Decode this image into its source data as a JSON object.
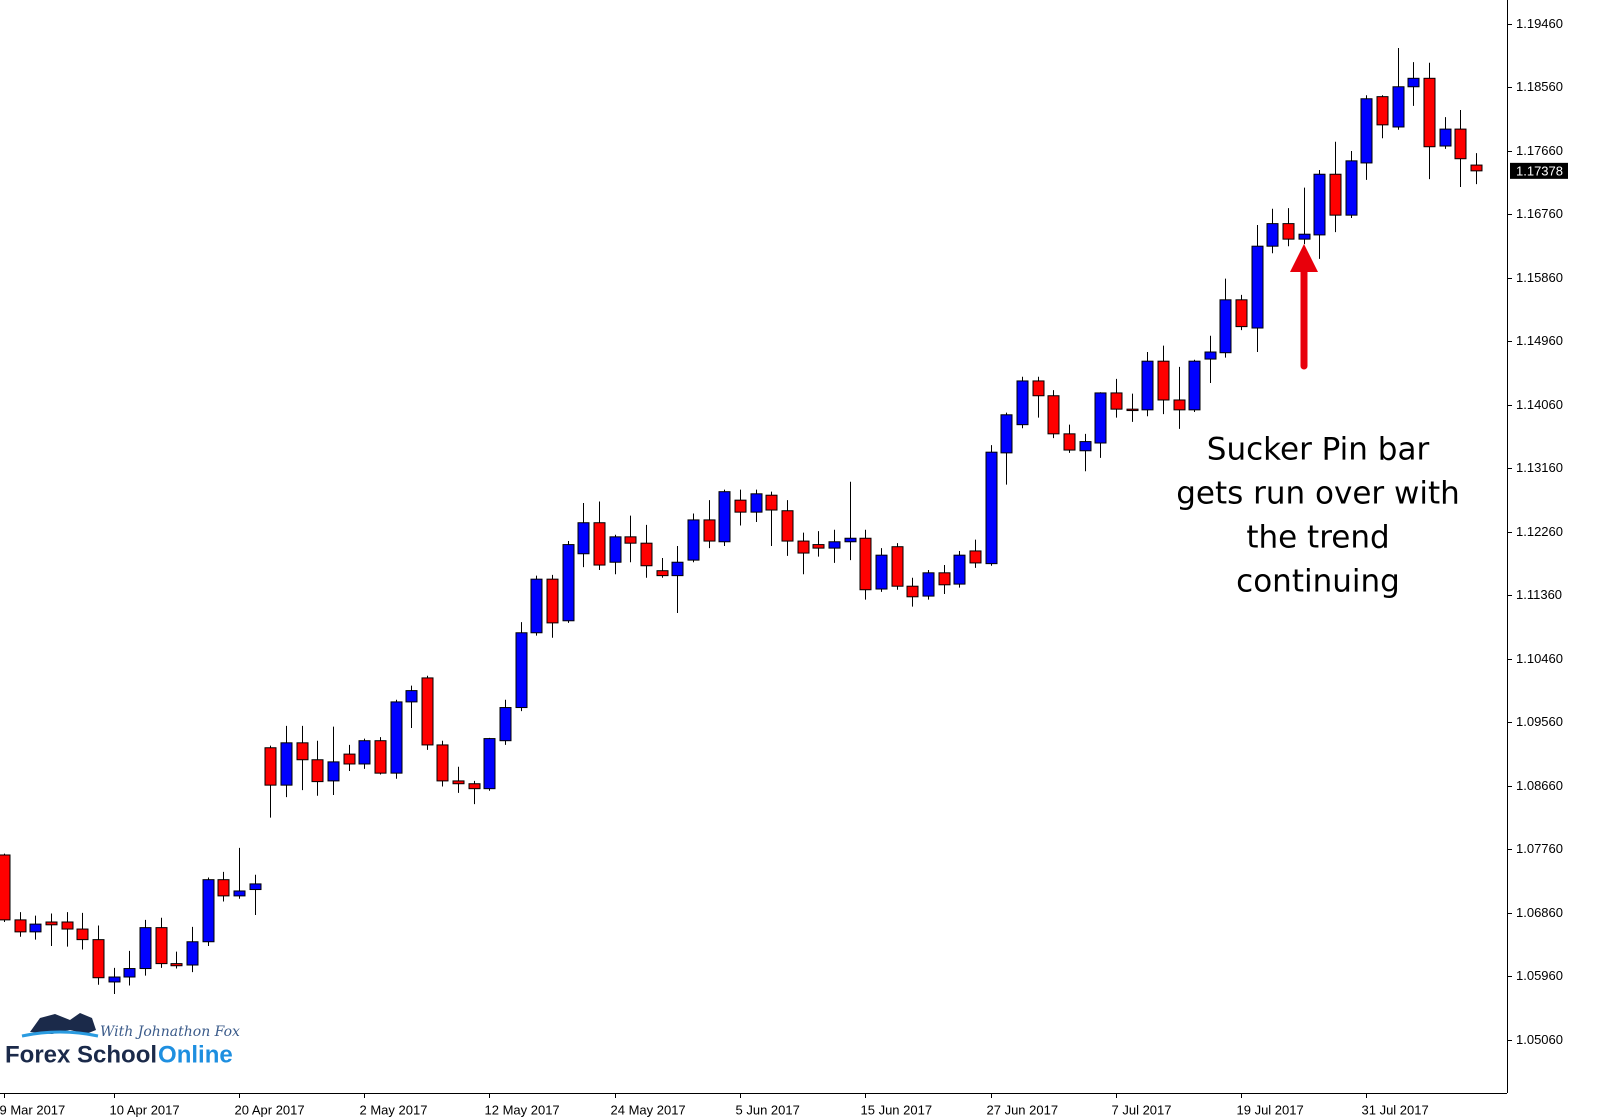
{
  "chart_data": {
    "type": "candlestick",
    "categories": [
      "9 Mar 2017",
      null,
      null,
      null,
      null,
      null,
      null,
      "10 Apr 2017",
      null,
      null,
      null,
      null,
      null,
      null,
      null,
      "20 Apr 2017",
      null,
      null,
      null,
      null,
      null,
      null,
      null,
      "2 May 2017",
      null,
      null,
      null,
      null,
      null,
      null,
      null,
      "12 May 2017",
      null,
      null,
      null,
      null,
      null,
      null,
      null,
      "24 May 2017",
      null,
      null,
      null,
      null,
      null,
      null,
      null,
      "5 Jun 2017",
      null,
      null,
      null,
      null,
      null,
      null,
      null,
      "15 Jun 2017",
      null,
      null,
      null,
      null,
      null,
      null,
      null,
      "27 Jun 2017",
      null,
      null,
      null,
      null,
      null,
      null,
      null,
      "7 Jul 2017",
      null,
      null,
      null,
      null,
      null,
      null,
      null,
      "19 Jul 2017",
      null,
      null,
      null,
      null,
      null,
      null,
      null,
      "31 Jul 2017",
      null,
      null,
      null,
      null,
      null,
      null,
      null
    ],
    "open": [
      1.0768,
      1.0676,
      1.0659,
      1.0673,
      1.0673,
      1.0663,
      1.0648,
      1.0588,
      1.0595,
      1.0607,
      1.0665,
      1.0614,
      1.0612,
      1.0645,
      1.0733,
      1.071,
      1.0719,
      1.092,
      1.0867,
      1.0927,
      1.0903,
      1.0873,
      1.0911,
      1.0897,
      1.093,
      1.0884,
      1.0985,
      1.1019,
      1.0924,
      1.0873,
      1.0869,
      1.0862,
      1.093,
      1.0977,
      1.1083,
      1.1159,
      1.11,
      1.1195,
      1.1239,
      1.1183,
      1.1219,
      1.121,
      1.1171,
      1.1164,
      1.1186,
      1.1243,
      1.1212,
      1.1271,
      1.1254,
      1.1278,
      1.1256,
      1.1213,
      1.1208,
      1.1203,
      1.1212,
      1.1217,
      1.1145,
      1.1205,
      1.1149,
      1.1135,
      1.1168,
      1.1152,
      1.1199,
      1.1181,
      1.1338,
      1.1378,
      1.144,
      1.1419,
      1.1365,
      1.1341,
      1.1352,
      1.1423,
      1.14,
      1.1399,
      1.1468,
      1.1413,
      1.1399,
      1.1471,
      1.148,
      1.1555,
      1.1515,
      1.1631,
      1.1663,
      1.1641,
      1.1647,
      1.1733,
      1.1675,
      1.1749,
      1.1843,
      1.18,
      1.1857,
      1.1869,
      1.1773,
      1.1797,
      1.1746
    ],
    "high": [
      1.077,
      1.0687,
      1.0682,
      1.0685,
      1.0687,
      1.0686,
      1.0668,
      1.0608,
      1.0632,
      1.0676,
      1.0679,
      1.0631,
      1.0666,
      1.0736,
      1.0744,
      1.0778,
      1.074,
      1.0923,
      1.0951,
      1.0951,
      1.093,
      1.095,
      1.0924,
      1.0933,
      1.0935,
      1.0988,
      1.1008,
      1.1022,
      1.093,
      1.0893,
      1.0873,
      1.0934,
      1.0988,
      1.1098,
      1.1164,
      1.1165,
      1.1213,
      1.1267,
      1.1269,
      1.1222,
      1.1249,
      1.1236,
      1.1189,
      1.1206,
      1.1252,
      1.1271,
      1.1286,
      1.1286,
      1.1286,
      1.1283,
      1.1271,
      1.1225,
      1.1227,
      1.1229,
      1.1297,
      1.1229,
      1.1203,
      1.121,
      1.1161,
      1.1172,
      1.1179,
      1.1199,
      1.1215,
      1.1349,
      1.1395,
      1.1446,
      1.1446,
      1.1427,
      1.1378,
      1.1365,
      1.1424,
      1.1443,
      1.1422,
      1.1481,
      1.149,
      1.146,
      1.147,
      1.1504,
      1.1585,
      1.1562,
      1.1661,
      1.1684,
      1.1685,
      1.1714,
      1.1739,
      1.1779,
      1.1766,
      1.1845,
      1.1845,
      1.1912,
      1.1892,
      1.1891,
      1.1814,
      1.1824,
      1.1763
    ],
    "low": [
      1.0673,
      1.0652,
      1.0648,
      1.0639,
      1.0638,
      1.0634,
      1.0584,
      1.0571,
      1.0583,
      1.0597,
      1.0608,
      1.0607,
      1.0602,
      1.0639,
      1.0702,
      1.0706,
      1.0683,
      1.0821,
      1.085,
      1.086,
      1.0852,
      1.0853,
      1.0887,
      1.089,
      1.0882,
      1.0876,
      1.0948,
      1.0917,
      1.0865,
      1.0856,
      1.084,
      1.0859,
      1.0924,
      1.0972,
      1.1079,
      1.1076,
      1.1097,
      1.1176,
      1.1172,
      1.1166,
      1.1183,
      1.1161,
      1.1161,
      1.1111,
      1.1183,
      1.1203,
      1.1206,
      1.1235,
      1.124,
      1.1206,
      1.1192,
      1.1166,
      1.1191,
      1.1182,
      1.1186,
      1.113,
      1.1141,
      1.1144,
      1.112,
      1.113,
      1.1138,
      1.1147,
      1.1175,
      1.1178,
      1.1293,
      1.1373,
      1.1388,
      1.1359,
      1.1338,
      1.1312,
      1.1331,
      1.1388,
      1.1382,
      1.139,
      1.1393,
      1.1372,
      1.1396,
      1.1437,
      1.1473,
      1.1512,
      1.1481,
      1.1621,
      1.1631,
      1.1634,
      1.1613,
      1.1651,
      1.1671,
      1.1725,
      1.1784,
      1.1796,
      1.183,
      1.1726,
      1.1769,
      1.1715,
      1.1719
    ],
    "close": [
      1.0676,
      1.0659,
      1.067,
      1.0669,
      1.0663,
      1.0648,
      1.0594,
      1.0595,
      1.0607,
      1.0665,
      1.0614,
      1.0611,
      1.0645,
      1.0733,
      1.071,
      1.0717,
      1.0727,
      1.0867,
      1.0927,
      1.0903,
      1.0872,
      1.09,
      1.0897,
      1.093,
      1.0884,
      1.0985,
      1.1001,
      1.0924,
      1.0873,
      1.0869,
      1.0862,
      1.0933,
      1.0977,
      1.1083,
      1.1159,
      1.1097,
      1.1208,
      1.1239,
      1.1179,
      1.1219,
      1.121,
      1.1178,
      1.1164,
      1.1183,
      1.1243,
      1.1213,
      1.1283,
      1.1254,
      1.128,
      1.1257,
      1.1213,
      1.1196,
      1.1203,
      1.1212,
      1.1217,
      1.1144,
      1.1193,
      1.1149,
      1.1134,
      1.1168,
      1.1151,
      1.1193,
      1.1182,
      1.1339,
      1.1392,
      1.144,
      1.1419,
      1.1365,
      1.1342,
      1.1354,
      1.1423,
      1.14,
      1.1398,
      1.1468,
      1.1413,
      1.1399,
      1.1468,
      1.1481,
      1.1555,
      1.1517,
      1.1631,
      1.1663,
      1.1641,
      1.1648,
      1.1733,
      1.1675,
      1.1752,
      1.184,
      1.1803,
      1.1857,
      1.1869,
      1.1772,
      1.1797,
      1.1755,
      1.17378
    ],
    "up_color": "#0000ff",
    "down_color": "#ff0000",
    "ylim": [
      1.0432,
      1.198
    ],
    "yticks": [
      {
        "value": 1.0506,
        "label": "1.05060"
      },
      {
        "value": 1.0596,
        "label": "1.05960"
      },
      {
        "value": 1.0686,
        "label": "1.06860"
      },
      {
        "value": 1.0776,
        "label": "1.07760"
      },
      {
        "value": 1.0866,
        "label": "1.08660"
      },
      {
        "value": 1.0956,
        "label": "1.09560"
      },
      {
        "value": 1.1046,
        "label": "1.10460"
      },
      {
        "value": 1.1136,
        "label": "1.11360"
      },
      {
        "value": 1.1226,
        "label": "1.12260"
      },
      {
        "value": 1.1316,
        "label": "1.13160"
      },
      {
        "value": 1.1406,
        "label": "1.14060"
      },
      {
        "value": 1.1496,
        "label": "1.14960"
      },
      {
        "value": 1.1586,
        "label": "1.15860"
      },
      {
        "value": 1.1676,
        "label": "1.16760"
      },
      {
        "value": 1.1766,
        "label": "1.17660"
      },
      {
        "value": 1.1856,
        "label": "1.18560"
      },
      {
        "value": 1.1946,
        "label": "1.19460"
      }
    ],
    "last_price": 1.17378,
    "annotation": [
      "Sucker Pin bar",
      "gets run over with",
      "the trend",
      "continuing"
    ]
  },
  "logo": {
    "tagline": "With Johnathon Fox",
    "name": "Forex School",
    "accent": "Online"
  }
}
